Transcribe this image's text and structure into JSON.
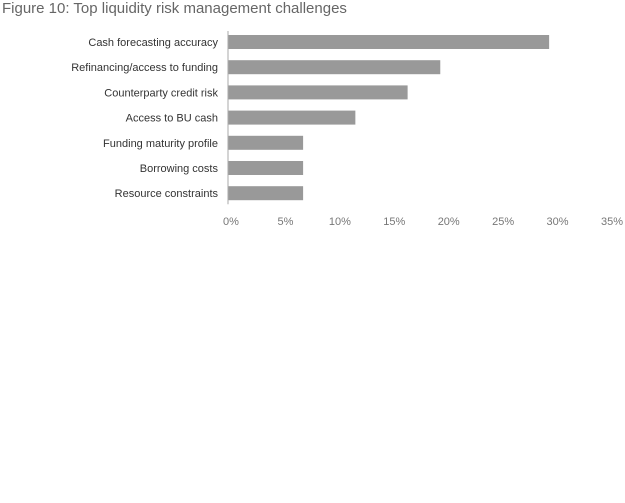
{
  "figure_title": "Figure 10: Top liquidity risk management challenges",
  "colors": {
    "bar": "#999999",
    "axis": "#aaaaaa",
    "label": "#333333",
    "tick": "#777777",
    "title": "#666666"
  },
  "chart_data": {
    "type": "bar",
    "orientation": "horizontal",
    "title": "Figure 10: Top liquidity risk management challenges",
    "xlabel": "",
    "ylabel": "",
    "categories": [
      "Cash forecasting accuracy",
      "Refinancing/access to funding",
      "Counterparty credit risk",
      "Access to BU cash",
      "Funding maturity profile",
      "Borrowing costs",
      "Resource constraints"
    ],
    "values": [
      29.5,
      19.5,
      16.5,
      11.7,
      6.9,
      6.9,
      6.9
    ],
    "xlim": [
      0,
      35
    ],
    "x_ticks": [
      0,
      5,
      10,
      15,
      20,
      25,
      30,
      35
    ],
    "tick_labels": [
      "0%",
      "5%",
      "10%",
      "15%",
      "20%",
      "25%",
      "30%",
      "35%"
    ],
    "grid": false,
    "legend": "none"
  }
}
